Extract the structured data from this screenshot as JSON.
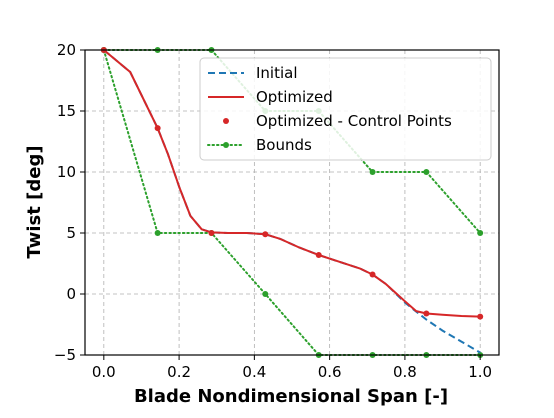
{
  "chart_data": {
    "type": "line",
    "xlabel": "Blade Nondimensional Span [-]",
    "ylabel": "Twist [deg]",
    "xlim": [
      -0.05,
      1.05
    ],
    "ylim": [
      -5,
      20
    ],
    "xticks": [
      0.0,
      0.2,
      0.4,
      0.6,
      0.8,
      1.0
    ],
    "xtick_labels": [
      "0.0",
      "0.2",
      "0.4",
      "0.6",
      "0.8",
      "1.0"
    ],
    "yticks": [
      -5,
      0,
      5,
      10,
      15,
      20
    ],
    "ytick_labels": [
      "−5",
      "0",
      "5",
      "10",
      "15",
      "20"
    ],
    "grid": true,
    "legend_position": "top-right",
    "series": [
      {
        "name": "Initial",
        "style": "dashed",
        "color": "#1f77b4",
        "points": [
          [
            0.0,
            20.0
          ],
          [
            0.07,
            18.2
          ],
          [
            0.143,
            13.6
          ],
          [
            0.17,
            11.5
          ],
          [
            0.2,
            8.8
          ],
          [
            0.23,
            6.4
          ],
          [
            0.26,
            5.3
          ],
          [
            0.286,
            5.05
          ],
          [
            0.33,
            5.0
          ],
          [
            0.38,
            5.0
          ],
          [
            0.429,
            4.9
          ],
          [
            0.47,
            4.5
          ],
          [
            0.52,
            3.8
          ],
          [
            0.571,
            3.2
          ],
          [
            0.62,
            2.7
          ],
          [
            0.68,
            2.1
          ],
          [
            0.714,
            1.6
          ],
          [
            0.75,
            0.8
          ],
          [
            0.8,
            -0.7
          ],
          [
            0.82,
            -1.2
          ],
          [
            0.857,
            -2.1
          ],
          [
            0.9,
            -3.0
          ],
          [
            0.95,
            -3.9
          ],
          [
            1.0,
            -4.8
          ]
        ]
      },
      {
        "name": "Optimized",
        "style": "solid",
        "color": "#d62728",
        "points": [
          [
            0.0,
            20.0
          ],
          [
            0.07,
            18.2
          ],
          [
            0.143,
            13.6
          ],
          [
            0.17,
            11.5
          ],
          [
            0.2,
            8.8
          ],
          [
            0.23,
            6.4
          ],
          [
            0.26,
            5.3
          ],
          [
            0.286,
            5.05
          ],
          [
            0.33,
            5.0
          ],
          [
            0.38,
            5.0
          ],
          [
            0.429,
            4.9
          ],
          [
            0.47,
            4.5
          ],
          [
            0.52,
            3.8
          ],
          [
            0.571,
            3.2
          ],
          [
            0.62,
            2.7
          ],
          [
            0.68,
            2.1
          ],
          [
            0.714,
            1.6
          ],
          [
            0.75,
            0.8
          ],
          [
            0.8,
            -0.6
          ],
          [
            0.83,
            -1.4
          ],
          [
            0.857,
            -1.6
          ],
          [
            0.9,
            -1.7
          ],
          [
            0.95,
            -1.8
          ],
          [
            1.0,
            -1.85
          ]
        ]
      },
      {
        "name": "Optimized - Control Points",
        "style": "markers",
        "color": "#d62728",
        "points": [
          [
            0.0,
            20.0
          ],
          [
            0.143,
            13.6
          ],
          [
            0.286,
            5.0
          ],
          [
            0.429,
            4.9
          ],
          [
            0.571,
            3.2
          ],
          [
            0.714,
            1.6
          ],
          [
            0.857,
            -1.6
          ],
          [
            1.0,
            -1.85
          ]
        ]
      },
      {
        "name": "Bounds",
        "style": "dotted-markers",
        "color": "#2ca02c",
        "lines": [
          [
            [
              0.0,
              20.0
            ],
            [
              0.143,
              5.0
            ],
            [
              0.286,
              5.0
            ],
            [
              0.429,
              0.0
            ],
            [
              0.571,
              -5.0
            ],
            [
              0.714,
              -5.0
            ],
            [
              0.857,
              -5.0
            ],
            [
              1.0,
              -5.0
            ]
          ],
          [
            [
              0.0,
              20.0
            ],
            [
              0.143,
              20.0
            ],
            [
              0.286,
              20.0
            ],
            [
              0.429,
              15.0
            ],
            [
              0.571,
              15.0
            ],
            [
              0.714,
              10.0
            ],
            [
              0.857,
              10.0
            ],
            [
              1.0,
              5.0
            ]
          ]
        ]
      }
    ]
  }
}
